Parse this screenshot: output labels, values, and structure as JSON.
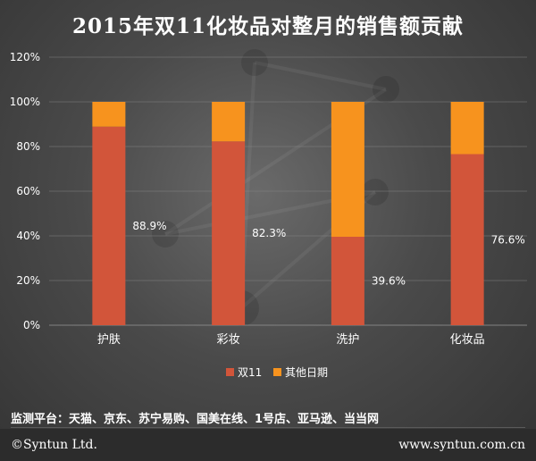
{
  "chart_data": {
    "type": "bar",
    "stacked": true,
    "title": "2015年双11化妆品对整月的销售额贡献",
    "categories": [
      "护肤",
      "彩妆",
      "洗护",
      "化妆品"
    ],
    "series": [
      {
        "name": "双11",
        "values": [
          88.9,
          82.3,
          39.6,
          76.6
        ],
        "color": "#d2553a"
      },
      {
        "name": "其他日期",
        "values": [
          11.1,
          17.7,
          60.4,
          23.4
        ],
        "color": "#f7931e"
      }
    ],
    "data_labels": [
      "88.9%",
      "82.3%",
      "39.6%",
      "76.6%"
    ],
    "y_ticks": [
      "0%",
      "20%",
      "40%",
      "60%",
      "80%",
      "100%",
      "120%"
    ],
    "ylim": [
      0,
      120
    ],
    "grid": true,
    "legend": "bottom"
  },
  "source": "监测平台：天猫、京东、苏宁易购、国美在线、1号店、亚马逊、当当网",
  "footer": {
    "left": "©Syntun Ltd.",
    "right": "www.syntun.com.cn"
  }
}
